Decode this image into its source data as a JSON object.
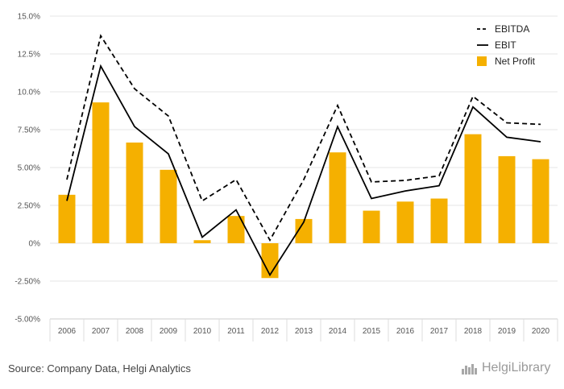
{
  "chart_data": {
    "type": "bar",
    "categories": [
      "2006",
      "2007",
      "2008",
      "2009",
      "2010",
      "2011",
      "2012",
      "2013",
      "2014",
      "2015",
      "2016",
      "2017",
      "2018",
      "2019",
      "2020"
    ],
    "series": [
      {
        "name": "EBITDA",
        "kind": "line",
        "style": "dashed",
        "color": "#000000",
        "values": [
          4.2,
          13.7,
          10.2,
          8.4,
          2.8,
          4.2,
          0.2,
          4.2,
          9.1,
          4.05,
          4.15,
          4.45,
          9.7,
          7.95,
          7.85
        ]
      },
      {
        "name": "EBIT",
        "kind": "line",
        "style": "solid",
        "color": "#000000",
        "values": [
          2.8,
          11.7,
          7.7,
          5.9,
          0.4,
          2.2,
          -2.1,
          1.4,
          7.7,
          2.95,
          3.45,
          3.8,
          9.0,
          7.0,
          6.7
        ]
      },
      {
        "name": "Net Profit",
        "kind": "bar",
        "color": "#f5b000",
        "values": [
          3.2,
          9.3,
          6.65,
          4.85,
          0.2,
          1.8,
          -2.3,
          1.6,
          6.0,
          2.15,
          2.75,
          2.95,
          7.2,
          5.75,
          5.55
        ]
      }
    ],
    "yticks": [
      "15.0%",
      "12.5%",
      "10.0%",
      "7.50%",
      "5.00%",
      "2.50%",
      "0%",
      "-2.50%",
      "-5.00%"
    ],
    "ylim": [
      -5,
      15
    ],
    "grid": true,
    "legend_position": "top-right"
  },
  "footer": {
    "source": "Source: Company Data, Helgi Analytics",
    "brand": "HelgiLibrary"
  }
}
